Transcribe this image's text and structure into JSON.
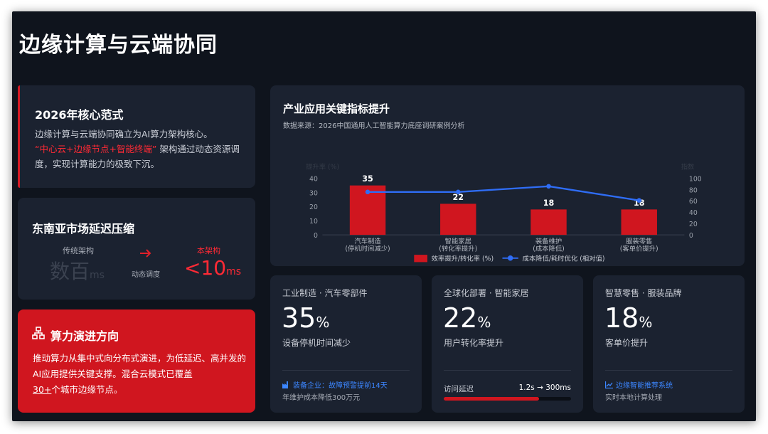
{
  "title": "边缘计算与云端协同",
  "core": {
    "heading": "2026年核心范式",
    "line1": "边缘计算与云端协同确立为AI算力架构核心。",
    "highlight": "“中心云+边缘节点+智能终端”",
    "line2": " 架构通过动态资源调度，实现计算能力的极致下沉。"
  },
  "latency": {
    "heading": "东南亚市场延迟压缩",
    "old_label": "传统架构",
    "old_value": "数百",
    "old_unit": "ms",
    "arrow_label": "动态调度",
    "new_label": "本架构",
    "new_value": "<10",
    "new_unit": "ms"
  },
  "direction": {
    "heading": "算力演进方向",
    "text": "推动算力从集中式向分布式演进，为低延迟、高并发的AI应用提供关键支撑。混合云模式已覆盖",
    "highlight": "30+",
    "tail": "个城市边缘节点。"
  },
  "chart": {
    "heading": "产业应用关键指标提升",
    "source": "数据来源：2026中国通用人工智能算力底座调研案例分析"
  },
  "chart_data": {
    "type": "bar",
    "categories": [
      [
        "汽车制造",
        "(停机时间减少)"
      ],
      [
        "智能家居",
        "(转化率提升)"
      ],
      [
        "装备维护",
        "(成本降低)"
      ],
      [
        "服装零售",
        "(客单价提升)"
      ]
    ],
    "series": [
      {
        "name": "效率提升/转化率 (%)",
        "type": "bar",
        "axis": "left",
        "values": [
          35,
          22,
          18,
          18
        ],
        "color": "#d0161f"
      },
      {
        "name": "成本降低/耗时优化 (相对值)",
        "type": "line",
        "axis": "right",
        "values": [
          76,
          76,
          86,
          61
        ],
        "color": "#2f6df6"
      }
    ],
    "ylabel_left": "提升率 (%)",
    "ylabel_right": "指数",
    "ylim_left": [
      0,
      40
    ],
    "ylim_right": [
      0,
      100
    ],
    "yticks_left": [
      0,
      10,
      20,
      30,
      40
    ],
    "yticks_right": [
      0,
      20,
      40,
      60,
      80,
      100
    ],
    "legend_position": "bottom"
  },
  "metrics": [
    {
      "heading": "工业制造 · 汽车零部件",
      "value": "35",
      "unit": "%",
      "desc": "设备停机时间减少",
      "foot_title": "装备企业：故障预警提前14天",
      "foot_sub": "年维护成本降低300万元"
    },
    {
      "heading": "全球化部署 · 智能家居",
      "value": "22",
      "unit": "%",
      "desc": "用户转化率提升",
      "foot_left": "访问延迟",
      "foot_right": "1.2s → 300ms",
      "progress": 0.75
    },
    {
      "heading": "智慧零售 · 服装品牌",
      "value": "18",
      "unit": "%",
      "desc": "客单价提升",
      "foot_title": "边缘智能推荐系统",
      "foot_sub": "实时本地计算处理"
    }
  ],
  "colors": {
    "accent": "#d0161f",
    "line": "#2f6df6",
    "link": "#3c86ff",
    "bg": "#0f141d",
    "card": "#1b2230"
  },
  "icons": [
    "sitemap-icon",
    "factory-icon",
    "chart-line-icon",
    "arrow-right-icon"
  ]
}
